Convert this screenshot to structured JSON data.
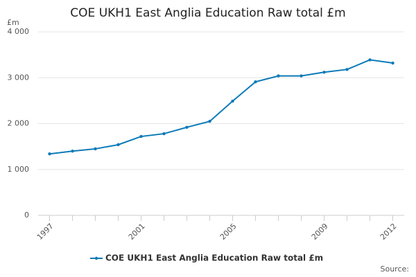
{
  "chart_data": {
    "type": "line",
    "title": "COE UKH1 East Anglia Education Raw total £m",
    "y_unit": "£m",
    "source": "Source:",
    "x": [
      1997,
      1998,
      1999,
      2000,
      2001,
      2002,
      2003,
      2004,
      2005,
      2006,
      2007,
      2008,
      2009,
      2010,
      2011,
      2012
    ],
    "series": [
      {
        "name": "COE UKH1 East Anglia Education Raw total £m",
        "color": "#0b7ab8",
        "values": [
          1340,
          1400,
          1450,
          1540,
          1720,
          1780,
          1920,
          2050,
          2490,
          2910,
          3040,
          3040,
          3120,
          3180,
          3390,
          3320
        ]
      }
    ],
    "xlim": [
      1996.5,
      2012.5
    ],
    "xticks": [
      1997,
      2001,
      2005,
      2009,
      2012
    ],
    "ylim": [
      0,
      4000
    ],
    "yticks": [
      0,
      {
        "value": 1000,
        "label": "1 000"
      },
      {
        "value": 2000,
        "label": "2 000"
      },
      {
        "value": 3000,
        "label": "3 000"
      },
      {
        "value": 4000,
        "label": "4 000"
      }
    ],
    "grid": true
  }
}
